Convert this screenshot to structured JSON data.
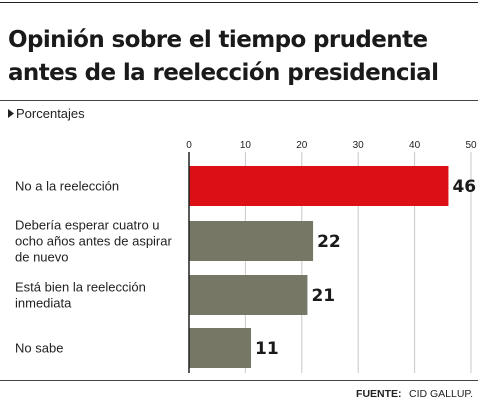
{
  "chart_data": {
    "type": "bar",
    "orientation": "horizontal",
    "title": [
      "Opinión sobre el tiempo prudente",
      "antes de la reelección presidencial"
    ],
    "subtitle": "Porcentajes",
    "categories": [
      [
        "No a la reelección"
      ],
      [
        "Debería esperar cuatro u",
        "ocho años antes de aspirar",
        "de nuevo"
      ],
      [
        "Está bien la reelección",
        "inmediata"
      ],
      [
        "No sabe"
      ]
    ],
    "values": [
      46,
      22,
      21,
      11
    ],
    "xlim": [
      0,
      50
    ],
    "ticks": [
      0,
      10,
      20,
      30,
      40,
      50
    ],
    "grid": true,
    "colors": [
      "#dc0f17",
      "#777766",
      "#777766",
      "#777766"
    ],
    "source_label": "FUENTE:",
    "source_value": "CID GALLUP."
  }
}
